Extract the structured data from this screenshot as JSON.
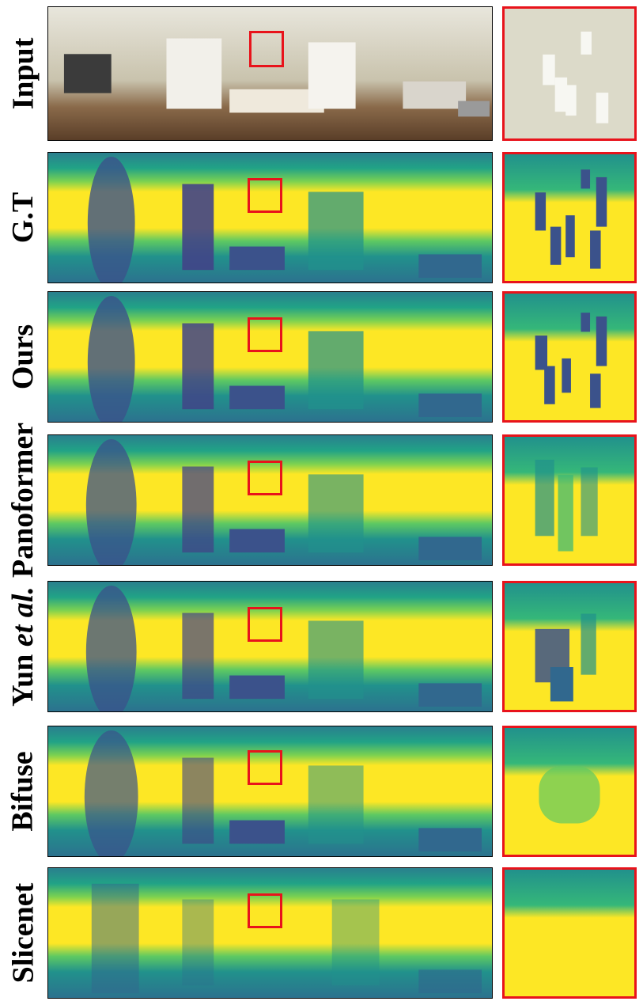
{
  "figure": {
    "rows": [
      {
        "id": "input",
        "label": "Input",
        "label_italic": ""
      },
      {
        "id": "gt",
        "label": "G.T",
        "label_italic": ""
      },
      {
        "id": "ours",
        "label": "Ours",
        "label_italic": ""
      },
      {
        "id": "panoformer",
        "label": "Panoformer",
        "label_italic": ""
      },
      {
        "id": "yun",
        "label": "Yun ",
        "label_italic": "et al."
      },
      {
        "id": "bifuse",
        "label": "Bifuse",
        "label_italic": ""
      },
      {
        "id": "slicenet",
        "label": "Slicenet",
        "label_italic": ""
      }
    ],
    "highlight_color": "#e8131b",
    "colormap": [
      "#440154",
      "#3b528b",
      "#21918c",
      "#5ec962",
      "#fde725"
    ]
  }
}
